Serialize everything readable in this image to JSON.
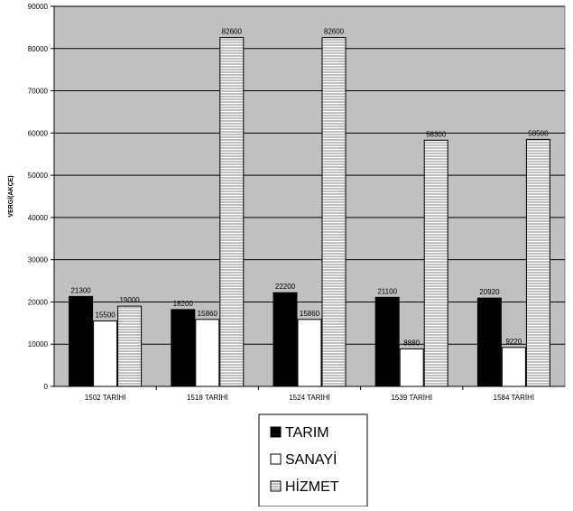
{
  "chart_data": {
    "type": "bar",
    "title": "",
    "xlabel": "",
    "ylabel": "VERGİ(AKÇE)",
    "ylim": [
      0,
      90000
    ],
    "yticks": [
      0,
      10000,
      20000,
      30000,
      40000,
      50000,
      60000,
      70000,
      80000,
      90000
    ],
    "grid": true,
    "legend_position": "bottom-center",
    "categories": [
      "1502 TARİHİ",
      "1518 TARİHİ",
      "1524 TARİHİ",
      "1539 TARİHİ",
      "1584 TARİHİ"
    ],
    "series": [
      {
        "name": "TARIM",
        "values": [
          21300,
          18200,
          22200,
          21100,
          20920
        ],
        "color": "#000000",
        "pattern": "solid"
      },
      {
        "name": "SANAYİ",
        "values": [
          15500,
          15860,
          15860,
          8880,
          9220
        ],
        "color": "#ffffff",
        "pattern": "solid"
      },
      {
        "name": "HİZMET",
        "values": [
          19000,
          82600,
          82600,
          58300,
          58500
        ],
        "color": "#c0c0c0",
        "pattern": "horizontal-lines"
      }
    ],
    "plot_background": "#c0c0c0"
  }
}
